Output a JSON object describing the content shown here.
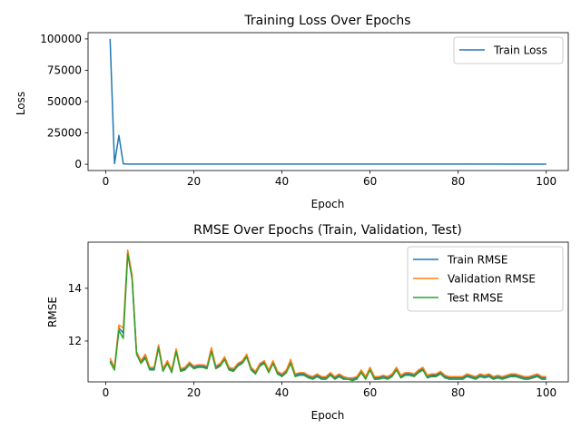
{
  "chart_data": [
    {
      "type": "line",
      "title": "Training Loss Over Epochs",
      "xlabel": "Epoch",
      "ylabel": "Loss",
      "xlim": [
        -4,
        105
      ],
      "ylim": [
        -5000,
        105000
      ],
      "xticks": [
        0,
        20,
        40,
        60,
        80,
        100
      ],
      "yticks": [
        0,
        25000,
        50000,
        75000,
        100000
      ],
      "ytick_labels": [
        "0",
        "25000",
        "50000",
        "75000",
        "100000"
      ],
      "grid": false,
      "legend": "upper right",
      "series": [
        {
          "name": "Train Loss",
          "color": "#1f77b4",
          "x": [
            1,
            2,
            3,
            4,
            5,
            100
          ],
          "values": [
            100000,
            500,
            23000,
            300,
            150,
            100
          ]
        }
      ]
    },
    {
      "type": "line",
      "title": "RMSE Over Epochs (Train, Validation, Test)",
      "xlabel": "Epoch",
      "ylabel": "RMSE",
      "xlim": [
        -4,
        105
      ],
      "ylim": [
        10.45,
        15.75
      ],
      "xticks": [
        0,
        20,
        40,
        60,
        80,
        100
      ],
      "yticks": [
        12,
        14
      ],
      "grid": false,
      "legend": "upper right",
      "x": [
        1,
        2,
        3,
        4,
        5,
        6,
        7,
        8,
        9,
        10,
        11,
        12,
        13,
        14,
        15,
        16,
        17,
        18,
        19,
        20,
        21,
        22,
        23,
        24,
        25,
        26,
        27,
        28,
        29,
        30,
        31,
        32,
        33,
        34,
        35,
        36,
        37,
        38,
        39,
        40,
        41,
        42,
        43,
        44,
        45,
        46,
        47,
        48,
        49,
        50,
        51,
        52,
        53,
        54,
        55,
        56,
        57,
        58,
        59,
        60,
        61,
        62,
        63,
        64,
        65,
        66,
        67,
        68,
        69,
        70,
        71,
        72,
        73,
        74,
        75,
        76,
        77,
        78,
        79,
        80,
        81,
        82,
        83,
        84,
        85,
        86,
        87,
        88,
        89,
        90,
        91,
        92,
        93,
        94,
        95,
        96,
        97,
        98,
        99,
        100
      ],
      "series": [
        {
          "name": "Train RMSE",
          "color": "#1f77b4",
          "values": [
            11.25,
            10.95,
            12.5,
            12.3,
            15.35,
            14.4,
            11.55,
            11.2,
            11.4,
            10.95,
            10.95,
            11.8,
            10.9,
            11.2,
            10.85,
            11.65,
            10.9,
            10.95,
            11.15,
            11.0,
            11.05,
            11.05,
            11.0,
            11.7,
            11.0,
            11.1,
            11.35,
            10.95,
            10.9,
            11.1,
            11.2,
            11.45,
            10.95,
            10.8,
            11.1,
            11.2,
            10.85,
            11.2,
            10.8,
            10.7,
            10.85,
            11.2,
            10.7,
            10.75,
            10.75,
            10.65,
            10.6,
            10.7,
            10.6,
            10.6,
            10.75,
            10.6,
            10.7,
            10.6,
            10.6,
            10.55,
            10.6,
            10.85,
            10.6,
            10.95,
            10.6,
            10.6,
            10.65,
            10.6,
            10.7,
            10.95,
            10.65,
            10.75,
            10.75,
            10.7,
            10.85,
            10.95,
            10.65,
            10.7,
            10.7,
            10.8,
            10.65,
            10.6,
            10.6,
            10.6,
            10.6,
            10.7,
            10.65,
            10.6,
            10.7,
            10.65,
            10.7,
            10.6,
            10.65,
            10.6,
            10.65,
            10.7,
            10.7,
            10.65,
            10.6,
            10.6,
            10.65,
            10.7,
            10.6,
            10.6
          ]
        },
        {
          "name": "Validation RMSE",
          "color": "#ff7f0e",
          "values": [
            11.35,
            11.0,
            12.6,
            12.5,
            15.45,
            14.5,
            11.6,
            11.25,
            11.5,
            11.0,
            11.0,
            11.85,
            10.95,
            11.25,
            10.9,
            11.7,
            10.95,
            11.0,
            11.2,
            11.05,
            11.1,
            11.1,
            11.05,
            11.75,
            11.05,
            11.15,
            11.4,
            11.0,
            10.95,
            11.15,
            11.25,
            11.5,
            11.0,
            10.85,
            11.15,
            11.25,
            10.9,
            11.25,
            10.85,
            10.75,
            10.9,
            11.3,
            10.75,
            10.8,
            10.8,
            10.7,
            10.65,
            10.75,
            10.65,
            10.65,
            10.8,
            10.65,
            10.75,
            10.65,
            10.6,
            10.6,
            10.65,
            10.9,
            10.65,
            11.0,
            10.65,
            10.65,
            10.7,
            10.65,
            10.75,
            11.0,
            10.7,
            10.8,
            10.8,
            10.75,
            10.9,
            11.0,
            10.7,
            10.75,
            10.75,
            10.85,
            10.7,
            10.65,
            10.65,
            10.65,
            10.65,
            10.75,
            10.7,
            10.65,
            10.75,
            10.7,
            10.75,
            10.65,
            10.7,
            10.65,
            10.7,
            10.75,
            10.75,
            10.7,
            10.65,
            10.65,
            10.7,
            10.75,
            10.65,
            10.65
          ]
        },
        {
          "name": "Test RMSE",
          "color": "#2ca02c",
          "values": [
            11.2,
            10.9,
            12.4,
            12.1,
            15.3,
            14.35,
            11.5,
            11.15,
            11.35,
            10.9,
            10.9,
            11.75,
            10.85,
            11.15,
            10.8,
            11.6,
            10.85,
            10.9,
            11.1,
            10.95,
            11.0,
            11.0,
            10.95,
            11.6,
            10.95,
            11.05,
            11.3,
            10.9,
            10.85,
            11.05,
            11.15,
            11.4,
            10.9,
            10.75,
            11.05,
            11.15,
            10.8,
            11.15,
            10.75,
            10.65,
            10.8,
            11.15,
            10.65,
            10.7,
            10.7,
            10.6,
            10.55,
            10.65,
            10.55,
            10.55,
            10.7,
            10.55,
            10.65,
            10.55,
            10.55,
            10.5,
            10.55,
            10.8,
            10.55,
            10.9,
            10.55,
            10.55,
            10.6,
            10.55,
            10.65,
            10.9,
            10.6,
            10.7,
            10.7,
            10.65,
            10.8,
            10.9,
            10.6,
            10.65,
            10.65,
            10.75,
            10.6,
            10.55,
            10.55,
            10.55,
            10.55,
            10.65,
            10.6,
            10.55,
            10.65,
            10.6,
            10.65,
            10.55,
            10.6,
            10.55,
            10.6,
            10.65,
            10.65,
            10.6,
            10.55,
            10.55,
            10.6,
            10.65,
            10.55,
            10.55
          ]
        }
      ]
    }
  ]
}
